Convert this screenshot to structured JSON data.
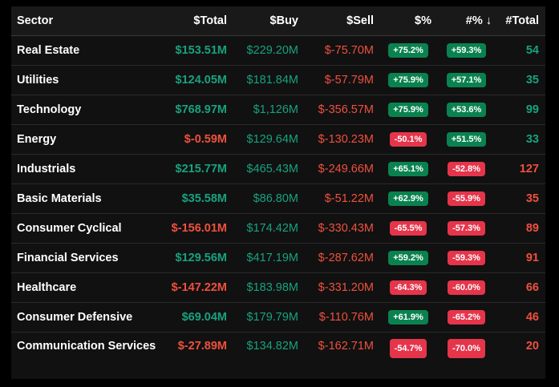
{
  "header": {
    "sector": "Sector",
    "total": "$Total",
    "buy": "$Buy",
    "sell": "$Sell",
    "dpct": "$%",
    "npct": "#%",
    "sort_icon": "↓",
    "ntotal": "#Total"
  },
  "colors": {
    "positive": "#17a27f",
    "negative": "#f0503e",
    "badge_positive": "#0a8250",
    "badge_negative": "#e5354b"
  },
  "rows": [
    {
      "sector": "Real Estate",
      "total": "$153.51M",
      "buy": "$229.20M",
      "sell": "$-75.70M",
      "dpct": "+75.2%",
      "npct": "+59.3%",
      "ntotal": "54"
    },
    {
      "sector": "Utilities",
      "total": "$124.05M",
      "buy": "$181.84M",
      "sell": "$-57.79M",
      "dpct": "+75.9%",
      "npct": "+57.1%",
      "ntotal": "35"
    },
    {
      "sector": "Technology",
      "total": "$768.97M",
      "buy": "$1,126M",
      "sell": "$-356.57M",
      "dpct": "+75.9%",
      "npct": "+53.6%",
      "ntotal": "99"
    },
    {
      "sector": "Energy",
      "total": "$-0.59M",
      "buy": "$129.64M",
      "sell": "$-130.23M",
      "dpct": "-50.1%",
      "npct": "+51.5%",
      "ntotal": "33"
    },
    {
      "sector": "Industrials",
      "total": "$215.77M",
      "buy": "$465.43M",
      "sell": "$-249.66M",
      "dpct": "+65.1%",
      "npct": "-52.8%",
      "ntotal": "127"
    },
    {
      "sector": "Basic Materials",
      "total": "$35.58M",
      "buy": "$86.80M",
      "sell": "$-51.22M",
      "dpct": "+62.9%",
      "npct": "-55.9%",
      "ntotal": "35"
    },
    {
      "sector": "Consumer Cyclical",
      "total": "$-156.01M",
      "buy": "$174.42M",
      "sell": "$-330.43M",
      "dpct": "-65.5%",
      "npct": "-57.3%",
      "ntotal": "89"
    },
    {
      "sector": "Financial Services",
      "total": "$129.56M",
      "buy": "$417.19M",
      "sell": "$-287.62M",
      "dpct": "+59.2%",
      "npct": "-59.3%",
      "ntotal": "91"
    },
    {
      "sector": "Healthcare",
      "total": "$-147.22M",
      "buy": "$183.98M",
      "sell": "$-331.20M",
      "dpct": "-64.3%",
      "npct": "-60.0%",
      "ntotal": "66"
    },
    {
      "sector": "Consumer Defensive",
      "total": "$69.04M",
      "buy": "$179.79M",
      "sell": "$-110.76M",
      "dpct": "+61.9%",
      "npct": "-65.2%",
      "ntotal": "46"
    },
    {
      "sector": "Communication Services",
      "total": "$-27.89M",
      "buy": "$134.82M",
      "sell": "$-162.71M",
      "dpct": "-54.7%",
      "npct": "-70.0%",
      "ntotal": "20"
    }
  ]
}
